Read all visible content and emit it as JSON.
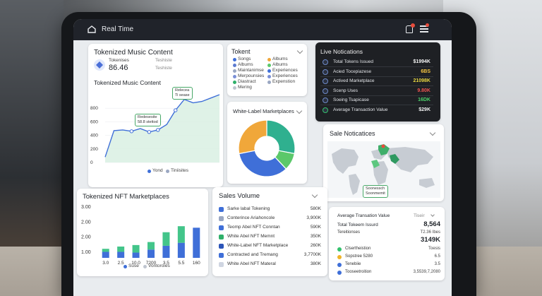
{
  "topbar": {
    "title": "Real Time"
  },
  "music": {
    "title": "Tokenized Music Content",
    "stat_value": "86.46",
    "stat_label_1": "Tokenises",
    "stat_label_2": "Teshiste",
    "chart_title": "Tokenized Music Content",
    "tooltip_1": "Relecea",
    "tooltip_1b": "Ti sease",
    "tooltip_2": "Redesesite",
    "tooltip_2b": "58.8 stettod",
    "legend": [
      "Yond",
      "Tiniisites"
    ]
  },
  "token": {
    "title": "Tokent",
    "col1": [
      "Songs",
      "Albums",
      "Maintanimse",
      "Merpounsies",
      "Diastract",
      "Mering"
    ],
    "col2": [
      "Albums",
      "Albums",
      "Experiences",
      "Experiences",
      "Expenstion"
    ]
  },
  "whitelabel": {
    "title": "White-Label Marketplaces"
  },
  "live": {
    "title": "Live Notications",
    "rows": [
      {
        "label": "Total Tokens Issued",
        "value": "$1994K",
        "color": "#f2f2f2"
      },
      {
        "label": "Acied Tocepiazese",
        "value": "6BS",
        "color": "#f5c542"
      },
      {
        "label": "Actived Marketplace",
        "value": "21098K",
        "color": "#e8d640"
      },
      {
        "label": "Scenp Uses",
        "value": "9.80K",
        "color": "#ef5350"
      },
      {
        "label": "Soeing Tsapicase",
        "value": "16DK",
        "color": "#4cd36b"
      },
      {
        "label": "Average Transaction Value",
        "value": "$29K",
        "color": "#f2f2f2"
      }
    ]
  },
  "notifications": {
    "title": "Sale Noticatices",
    "tooltip_1": "Soonessch",
    "tooltip_2": "Soonmemit"
  },
  "nft": {
    "title": "Tokenized NFT Marketplaces",
    "y_ticks": [
      "3.00",
      "2.00",
      "2.00",
      "1.00"
    ],
    "x_labels": [
      "3.0",
      "2.5",
      "10.0",
      "7200",
      "3.5",
      "5.5",
      "160"
    ],
    "legend": [
      "Suse",
      "Vontoroies"
    ]
  },
  "sales": {
    "title": "Sales Volume",
    "rows": [
      {
        "label": "Sarke labal Tokening",
        "value": "580K",
        "color": "#3f6fd8"
      },
      {
        "label": "Conterince Ariahoncole",
        "value": "3,900K",
        "color": "#9aa7c2"
      },
      {
        "label": "Teomp Abel NFT Conntan",
        "value": "590K",
        "color": "#3f6fd8"
      },
      {
        "label": "White Abel NFT Memnt",
        "value": "350K",
        "color": "#2fb06a"
      },
      {
        "label": "White-Label NFT Marketplace",
        "value": "260K",
        "color": "#2c55b8"
      },
      {
        "label": "Contracted and Tremang",
        "value": "3,7700K",
        "color": "#3f6fd8"
      },
      {
        "label": "White Abel NFT Materal",
        "value": "380K",
        "color": "#cfd5e1"
      }
    ]
  },
  "transactions": {
    "title": "Average Transation Value",
    "select": "Tiseir",
    "rows": [
      {
        "label": "Total Tokeem Issurd",
        "value": "8,564",
        "color": "",
        "bold": true
      },
      {
        "label": "Tereitionses",
        "value": "T2.36 Ibes",
        "color": ""
      },
      {
        "label": "",
        "value": "3149K",
        "color": "",
        "bold": true
      },
      {
        "label": "Clsertheistion",
        "value": "Toesis",
        "color": "#34c26d"
      },
      {
        "label": "Sopstree 5280",
        "value": "6.5",
        "color": "#f0b429"
      },
      {
        "label": "Tenebiie",
        "value": "3.5",
        "color": "#3f6fd8"
      },
      {
        "label": "Tooseetroition",
        "value": "3,5539,7,2080",
        "color": "#3f6fd8"
      }
    ]
  },
  "chart_data": [
    {
      "type": "line",
      "title": "Tokenized Music Content",
      "y_ticks": [
        800,
        600,
        400,
        200,
        0
      ],
      "ylim": [
        0,
        1000
      ],
      "series": [
        {
          "name": "Yond",
          "values": [
            80,
            470,
            480,
            460,
            500,
            450,
            480,
            560,
            770,
            930,
            880,
            900,
            950,
            1000
          ]
        }
      ]
    },
    {
      "type": "bar",
      "title": "Tokenized NFT Marketplaces",
      "categories": [
        "3.0",
        "2.5",
        "10.0",
        "7200",
        "3.5",
        "5.5",
        "160"
      ],
      "series": [
        {
          "name": "Suse",
          "values": [
            0.4,
            0.4,
            0.35,
            0.55,
            0.8,
            1.0,
            2.0
          ]
        },
        {
          "name": "Vontoroies",
          "values": [
            0.2,
            0.35,
            0.5,
            0.5,
            0.9,
            1.1,
            0
          ]
        }
      ],
      "ylim": [
        0,
        3.0
      ]
    },
    {
      "type": "pie",
      "title": "White-Label Marketplaces",
      "values": [
        28,
        10,
        34,
        28
      ],
      "colors": [
        "#2fb08f",
        "#5bc86a",
        "#3f6fd8",
        "#f0a73a"
      ]
    }
  ]
}
